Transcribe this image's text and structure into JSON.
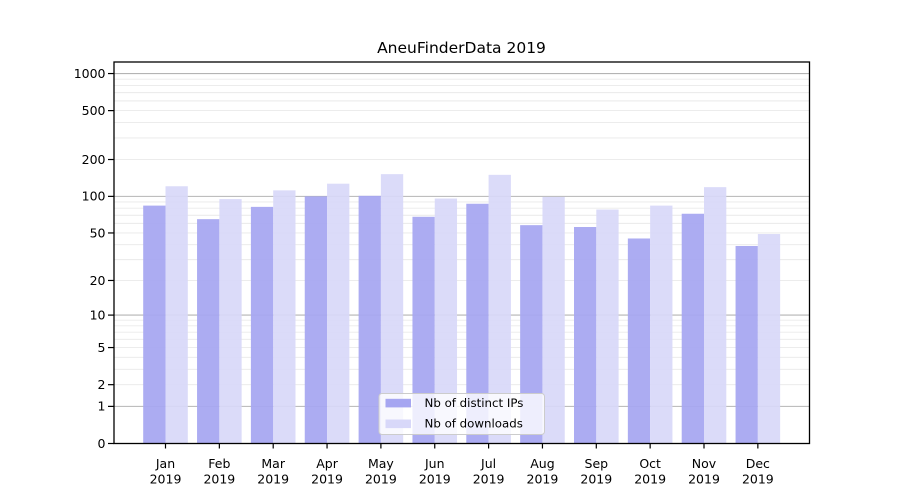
{
  "chart_data": {
    "type": "bar",
    "title": "AneuFinderData 2019",
    "categories": [
      "Jan 2019",
      "Feb 2019",
      "Mar 2019",
      "Apr 2019",
      "May 2019",
      "Jun 2019",
      "Jul 2019",
      "Aug 2019",
      "Sep 2019",
      "Oct 2019",
      "Nov 2019",
      "Dec 2019"
    ],
    "series": [
      {
        "name": "Nb of distinct IPs",
        "color": "#a6a6f1",
        "values": [
          84,
          65,
          82,
          100,
          101,
          68,
          87,
          58,
          56,
          45,
          72,
          39
        ]
      },
      {
        "name": "Nb of downloads",
        "color": "#d8d8f9",
        "values": [
          121,
          95,
          112,
          127,
          152,
          96,
          150,
          99,
          78,
          84,
          119,
          49
        ]
      }
    ],
    "xlabel": "",
    "ylabel": "",
    "yscale": "log1p",
    "yticks": [
      0,
      1,
      2,
      5,
      10,
      20,
      50,
      100,
      200,
      500,
      1000
    ],
    "ylim": [
      0,
      1240
    ],
    "grid": "horizontal major and minor gridlines",
    "legend_position": "lower center",
    "colors": {
      "major_grid": "#b4b4b4",
      "minor_grid": "#e9e9e9",
      "axis": "#000000",
      "legend_bg": "#ffffff",
      "legend_border": "#cccccc",
      "background": "#ffffff"
    }
  }
}
